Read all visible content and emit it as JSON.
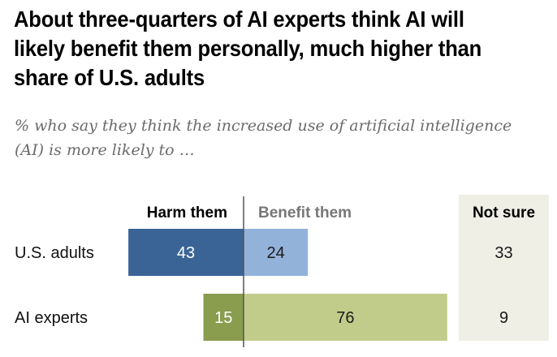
{
  "title": "About three-quarters of AI experts think AI will likely benefit them personally, much higher than share of U.S. adults",
  "subtitle": "% who say they think the increased use of artificial intelligence (AI) is more likely to …",
  "chart_data": {
    "type": "bar",
    "orientation": "horizontal-diverging",
    "title": "About three-quarters of AI experts think AI will likely benefit them personally, much higher than share of U.S. adults",
    "subtitle": "% who say they think the increased use of artificial intelligence (AI) is more likely to …",
    "categories": [
      "U.S. adults",
      "AI experts"
    ],
    "series": [
      {
        "name": "Harm them",
        "values": [
          43,
          15
        ],
        "colors": [
          "#3a6496",
          "#8a9c4e"
        ],
        "label_colors": [
          "#ffffff",
          "#ffffff"
        ]
      },
      {
        "name": "Benefit them",
        "values": [
          24,
          76
        ],
        "colors": [
          "#93b2da",
          "#c2cc8a"
        ],
        "label_colors": [
          "#1a1a1a",
          "#1a1a1a"
        ]
      },
      {
        "name": "Not sure",
        "values": [
          33,
          9
        ],
        "colors": [
          "#efefe6",
          "#efefe6"
        ],
        "label_colors": [
          "#1a1a1a",
          "#1a1a1a"
        ]
      }
    ],
    "header_colors": {
      "Harm them": "#000000",
      "Benefit them": "#777777",
      "Not sure": "#000000"
    },
    "xlim": [
      -50,
      80
    ],
    "grid": false,
    "legend": "column-headers"
  }
}
